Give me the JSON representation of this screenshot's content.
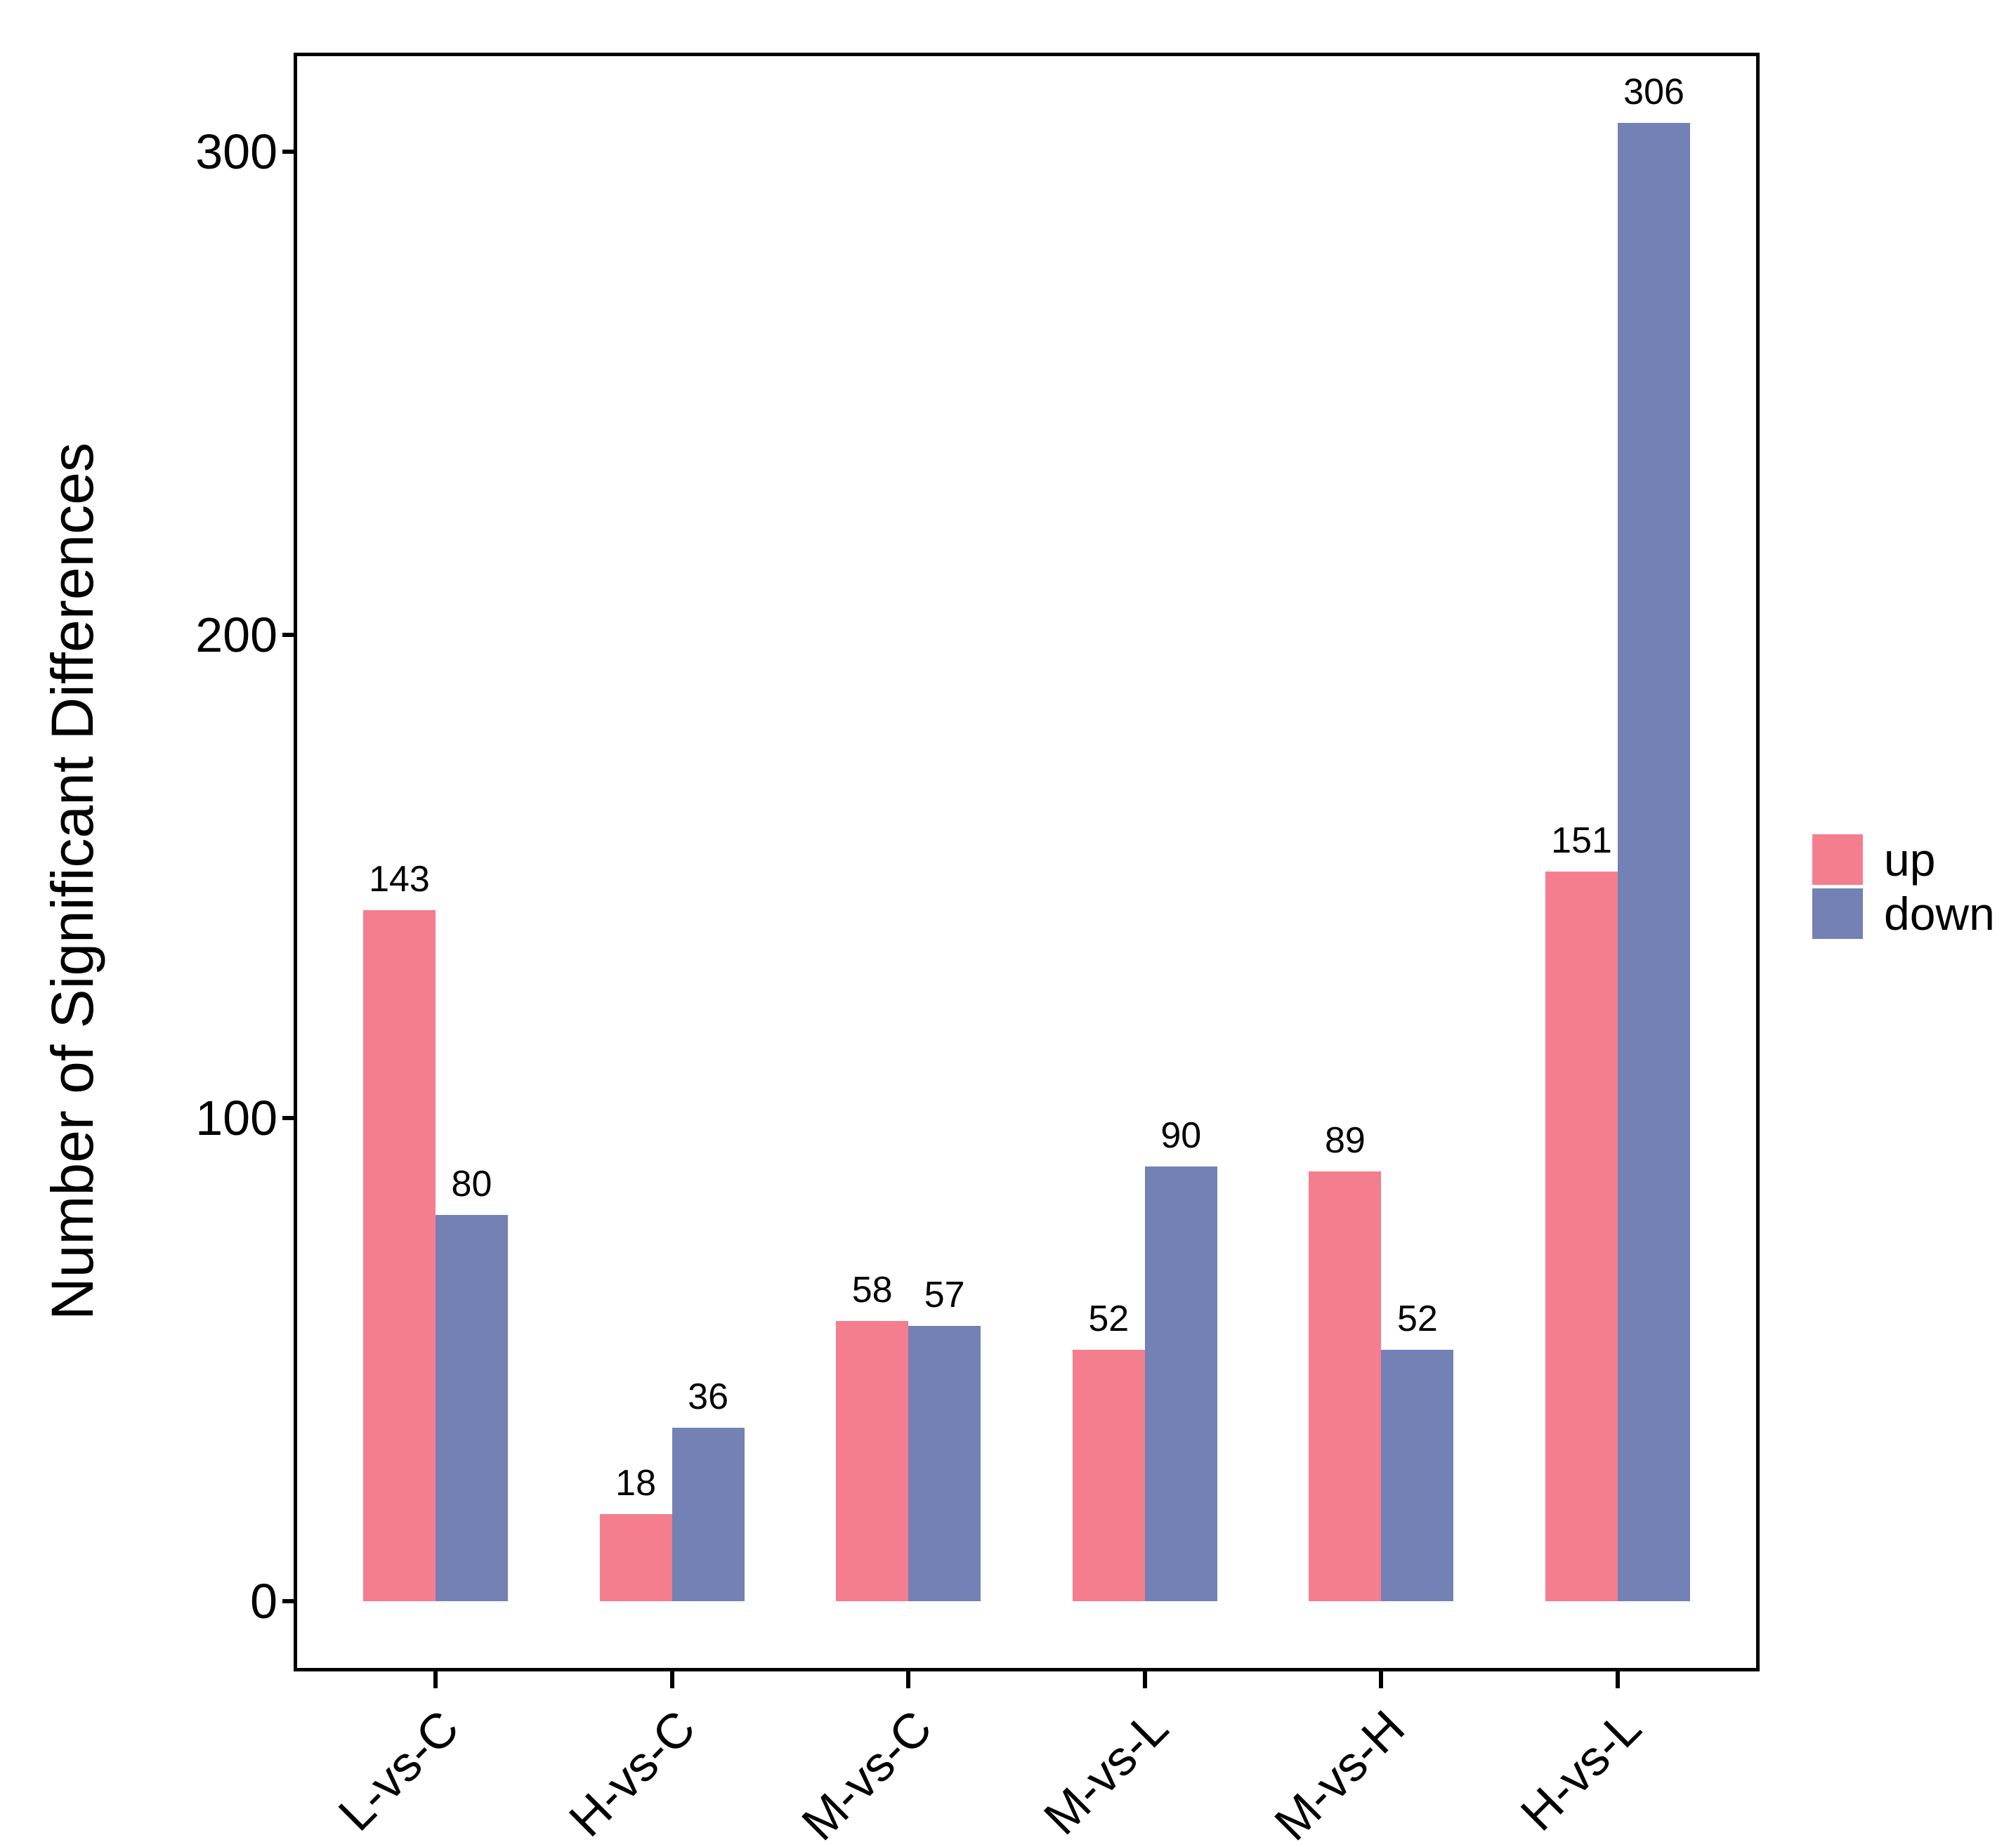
{
  "chart_data": {
    "type": "bar",
    "title": "",
    "categories": [
      "L-vs-C",
      "H-vs-C",
      "M-vs-C",
      "M-vs-L",
      "M-vs-H",
      "H-vs-L"
    ],
    "series": [
      {
        "name": "up",
        "color": "#F47E8D",
        "values": [
          143,
          18,
          58,
          52,
          89,
          151
        ]
      },
      {
        "name": "down",
        "color": "#7381B5",
        "values": [
          80,
          36,
          57,
          90,
          52,
          306
        ]
      }
    ],
    "ylabel": "Number of Significant Differences",
    "xlabel": "",
    "yticks": [
      0,
      100,
      200,
      300
    ],
    "ylim": [
      -14.5,
      320.5
    ],
    "grid": false,
    "legend_position": "right",
    "bar_value_labels": true,
    "bar_label_color": "#000000",
    "axis_color": "#000000",
    "panel_background": "#ffffff"
  },
  "legend": {
    "items": [
      {
        "label": "up",
        "color": "#F47E8D"
      },
      {
        "label": "down",
        "color": "#7381B5"
      }
    ]
  }
}
